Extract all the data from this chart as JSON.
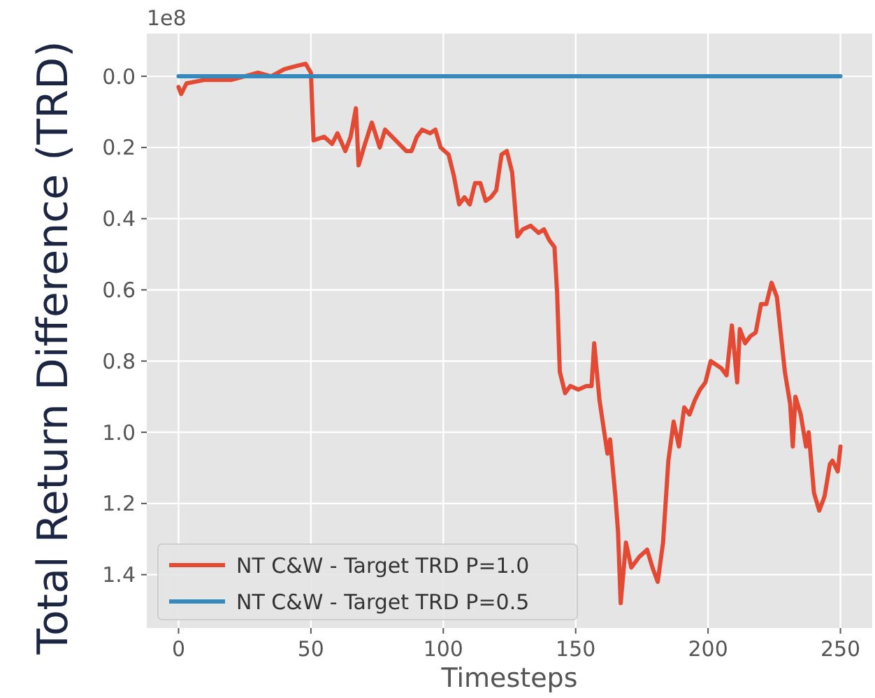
{
  "chart_data": {
    "type": "line",
    "xlabel": "Timesteps",
    "ylabel": "Total Return Difference (TRD)",
    "annotations": [
      "1e8"
    ],
    "xlim": [
      -12,
      262
    ],
    "ylim": [
      1.55,
      -0.12
    ],
    "xticks": [
      0,
      50,
      100,
      150,
      200,
      250
    ],
    "yticks": [
      {
        "value": 0,
        "label": "0.0"
      },
      {
        "value": 0.2,
        "label": "0.2"
      },
      {
        "value": 0.4,
        "label": "0.4"
      },
      {
        "value": 0.6,
        "label": "0.6"
      },
      {
        "value": 0.8,
        "label": "0.8"
      },
      {
        "value": 1,
        "label": "1.0"
      },
      {
        "value": 1.2,
        "label": "1.2"
      },
      {
        "value": 1.4,
        "label": "1.4"
      }
    ],
    "grid": true,
    "legend": "bottom left",
    "line_style": "solid",
    "series": [
      {
        "name": "NT C&W - Target TRD P=1.0",
        "color": "#e24a33",
        "x": [
          0,
          1,
          3,
          10,
          20,
          25,
          30,
          35,
          40,
          45,
          48,
          50,
          51,
          55,
          58,
          60,
          63,
          65,
          67,
          68,
          70,
          73,
          76,
          78,
          82,
          86,
          88,
          90,
          92,
          95,
          97,
          99,
          102,
          104,
          106,
          108,
          110,
          112,
          114,
          116,
          118,
          120,
          122,
          124,
          126,
          128,
          130,
          133,
          136,
          138,
          140,
          142,
          143,
          144,
          146,
          148,
          151,
          154,
          156,
          157,
          159,
          162,
          163,
          165,
          166,
          167,
          169,
          171,
          174,
          177,
          179,
          181,
          183,
          185,
          187,
          189,
          191,
          193,
          195,
          197,
          199,
          201,
          205,
          207,
          209,
          211,
          212,
          214,
          216,
          218,
          220,
          222,
          224,
          226,
          229,
          231,
          232,
          233,
          235,
          237,
          238,
          240,
          242,
          244,
          246,
          247,
          249,
          250
        ],
        "values": [
          0.03,
          0.05,
          0.02,
          0.01,
          0.01,
          0,
          -0.01,
          0,
          -0.02,
          -0.03,
          -0.035,
          -0.01,
          0.18,
          0.17,
          0.19,
          0.16,
          0.21,
          0.17,
          0.09,
          0.25,
          0.2,
          0.13,
          0.2,
          0.15,
          0.18,
          0.21,
          0.21,
          0.17,
          0.15,
          0.16,
          0.15,
          0.2,
          0.22,
          0.28,
          0.36,
          0.34,
          0.36,
          0.3,
          0.3,
          0.35,
          0.34,
          0.32,
          0.22,
          0.21,
          0.27,
          0.45,
          0.43,
          0.42,
          0.44,
          0.43,
          0.46,
          0.48,
          0.61,
          0.83,
          0.89,
          0.87,
          0.88,
          0.87,
          0.87,
          0.75,
          0.91,
          1.06,
          1.02,
          1.18,
          1.28,
          1.48,
          1.31,
          1.38,
          1.35,
          1.33,
          1.38,
          1.42,
          1.31,
          1.08,
          0.97,
          1.04,
          0.93,
          0.95,
          0.91,
          0.88,
          0.86,
          0.8,
          0.82,
          0.84,
          0.7,
          0.86,
          0.71,
          0.75,
          0.73,
          0.72,
          0.64,
          0.64,
          0.58,
          0.62,
          0.83,
          0.92,
          1.04,
          0.9,
          0.95,
          1.04,
          1.0,
          1.17,
          1.22,
          1.18,
          1.09,
          1.08,
          1.11,
          1.04
        ]
      },
      {
        "name": "NT C&W - Target TRD P=0.5",
        "color": "#348abd",
        "x": [
          0,
          250
        ],
        "values": [
          0,
          0
        ]
      }
    ]
  }
}
